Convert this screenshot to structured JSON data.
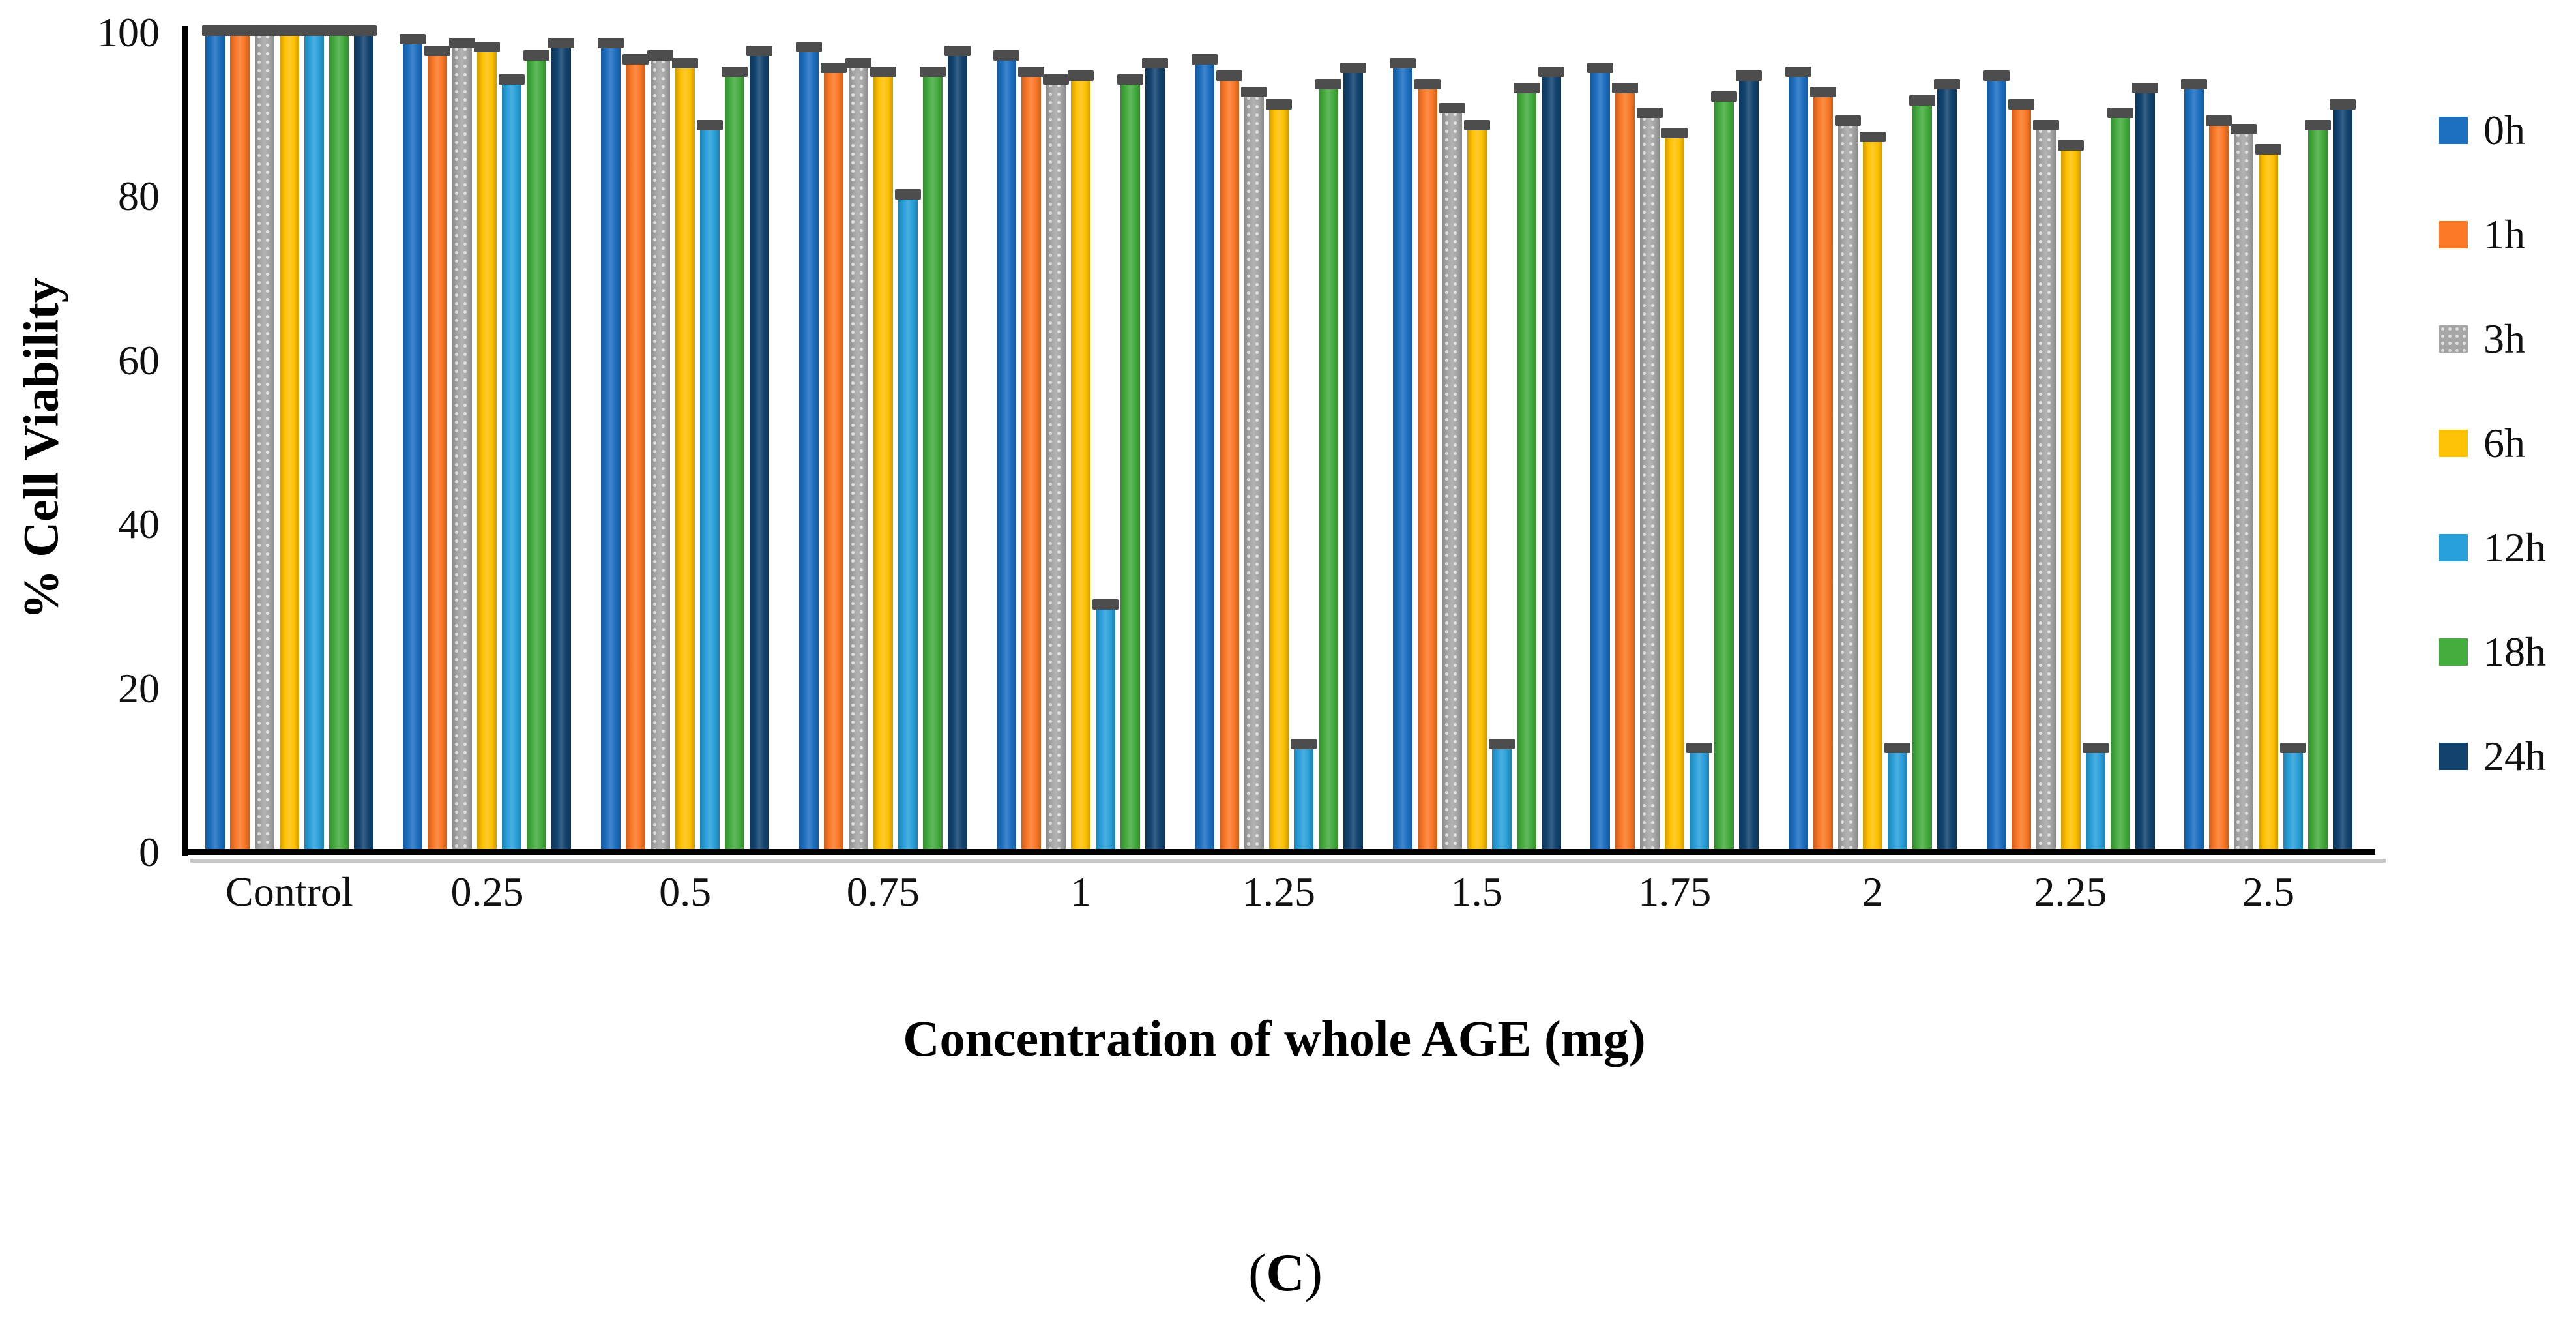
{
  "figure": {
    "caption_prefix": "(",
    "caption_letter": "C",
    "caption_suffix": ")"
  },
  "chart_data": {
    "type": "bar",
    "title": "",
    "xlabel": "Concentration of whole AGE (mg)",
    "ylabel": "% Cell Viability",
    "ylim": [
      0,
      100
    ],
    "yticks": [
      0,
      20,
      40,
      60,
      80,
      100
    ],
    "grid": false,
    "legend_position": "right",
    "error_caps": true,
    "error_cap_color": "#4d4d4d",
    "axis_color": "#000000",
    "categories": [
      "Control",
      "0.25",
      "0.5",
      "0.75",
      "1",
      "1.25",
      "1.5",
      "1.75",
      "2",
      "2.25",
      "2.5"
    ],
    "series": [
      {
        "name": "0h",
        "color": "#1D6FC0",
        "values": [
          100,
          99,
          98.5,
          98,
          97,
          96.5,
          96,
          95.5,
          95,
          94.5,
          93.5
        ]
      },
      {
        "name": "1h",
        "color": "#FA7826",
        "values": [
          100,
          97.5,
          96.5,
          95.5,
          95,
          94.5,
          93.5,
          93,
          92.5,
          91,
          89
        ]
      },
      {
        "name": "3h",
        "color": "#A6A6A6",
        "pattern": "dots",
        "values": [
          100,
          98.5,
          97,
          96,
          94,
          92.5,
          90.5,
          90,
          89,
          88.5,
          88
        ]
      },
      {
        "name": "6h",
        "color": "#FFC104",
        "values": [
          100,
          98,
          96,
          95,
          94.5,
          91,
          88.5,
          87.5,
          87,
          86,
          85.5
        ]
      },
      {
        "name": "12h",
        "color": "#29A0DA",
        "values": [
          100,
          94,
          88.5,
          80,
          30,
          13,
          13,
          12.5,
          12.5,
          12.5,
          12.5
        ]
      },
      {
        "name": "18h",
        "color": "#45AC3E",
        "values": [
          100,
          97,
          95,
          95,
          94,
          93.5,
          93,
          92,
          91.5,
          90,
          88.5
        ]
      },
      {
        "name": "24h",
        "color": "#12436F",
        "values": [
          100,
          98.5,
          97.5,
          97.5,
          96,
          95.5,
          95,
          94.5,
          93.5,
          93,
          91
        ]
      }
    ]
  }
}
